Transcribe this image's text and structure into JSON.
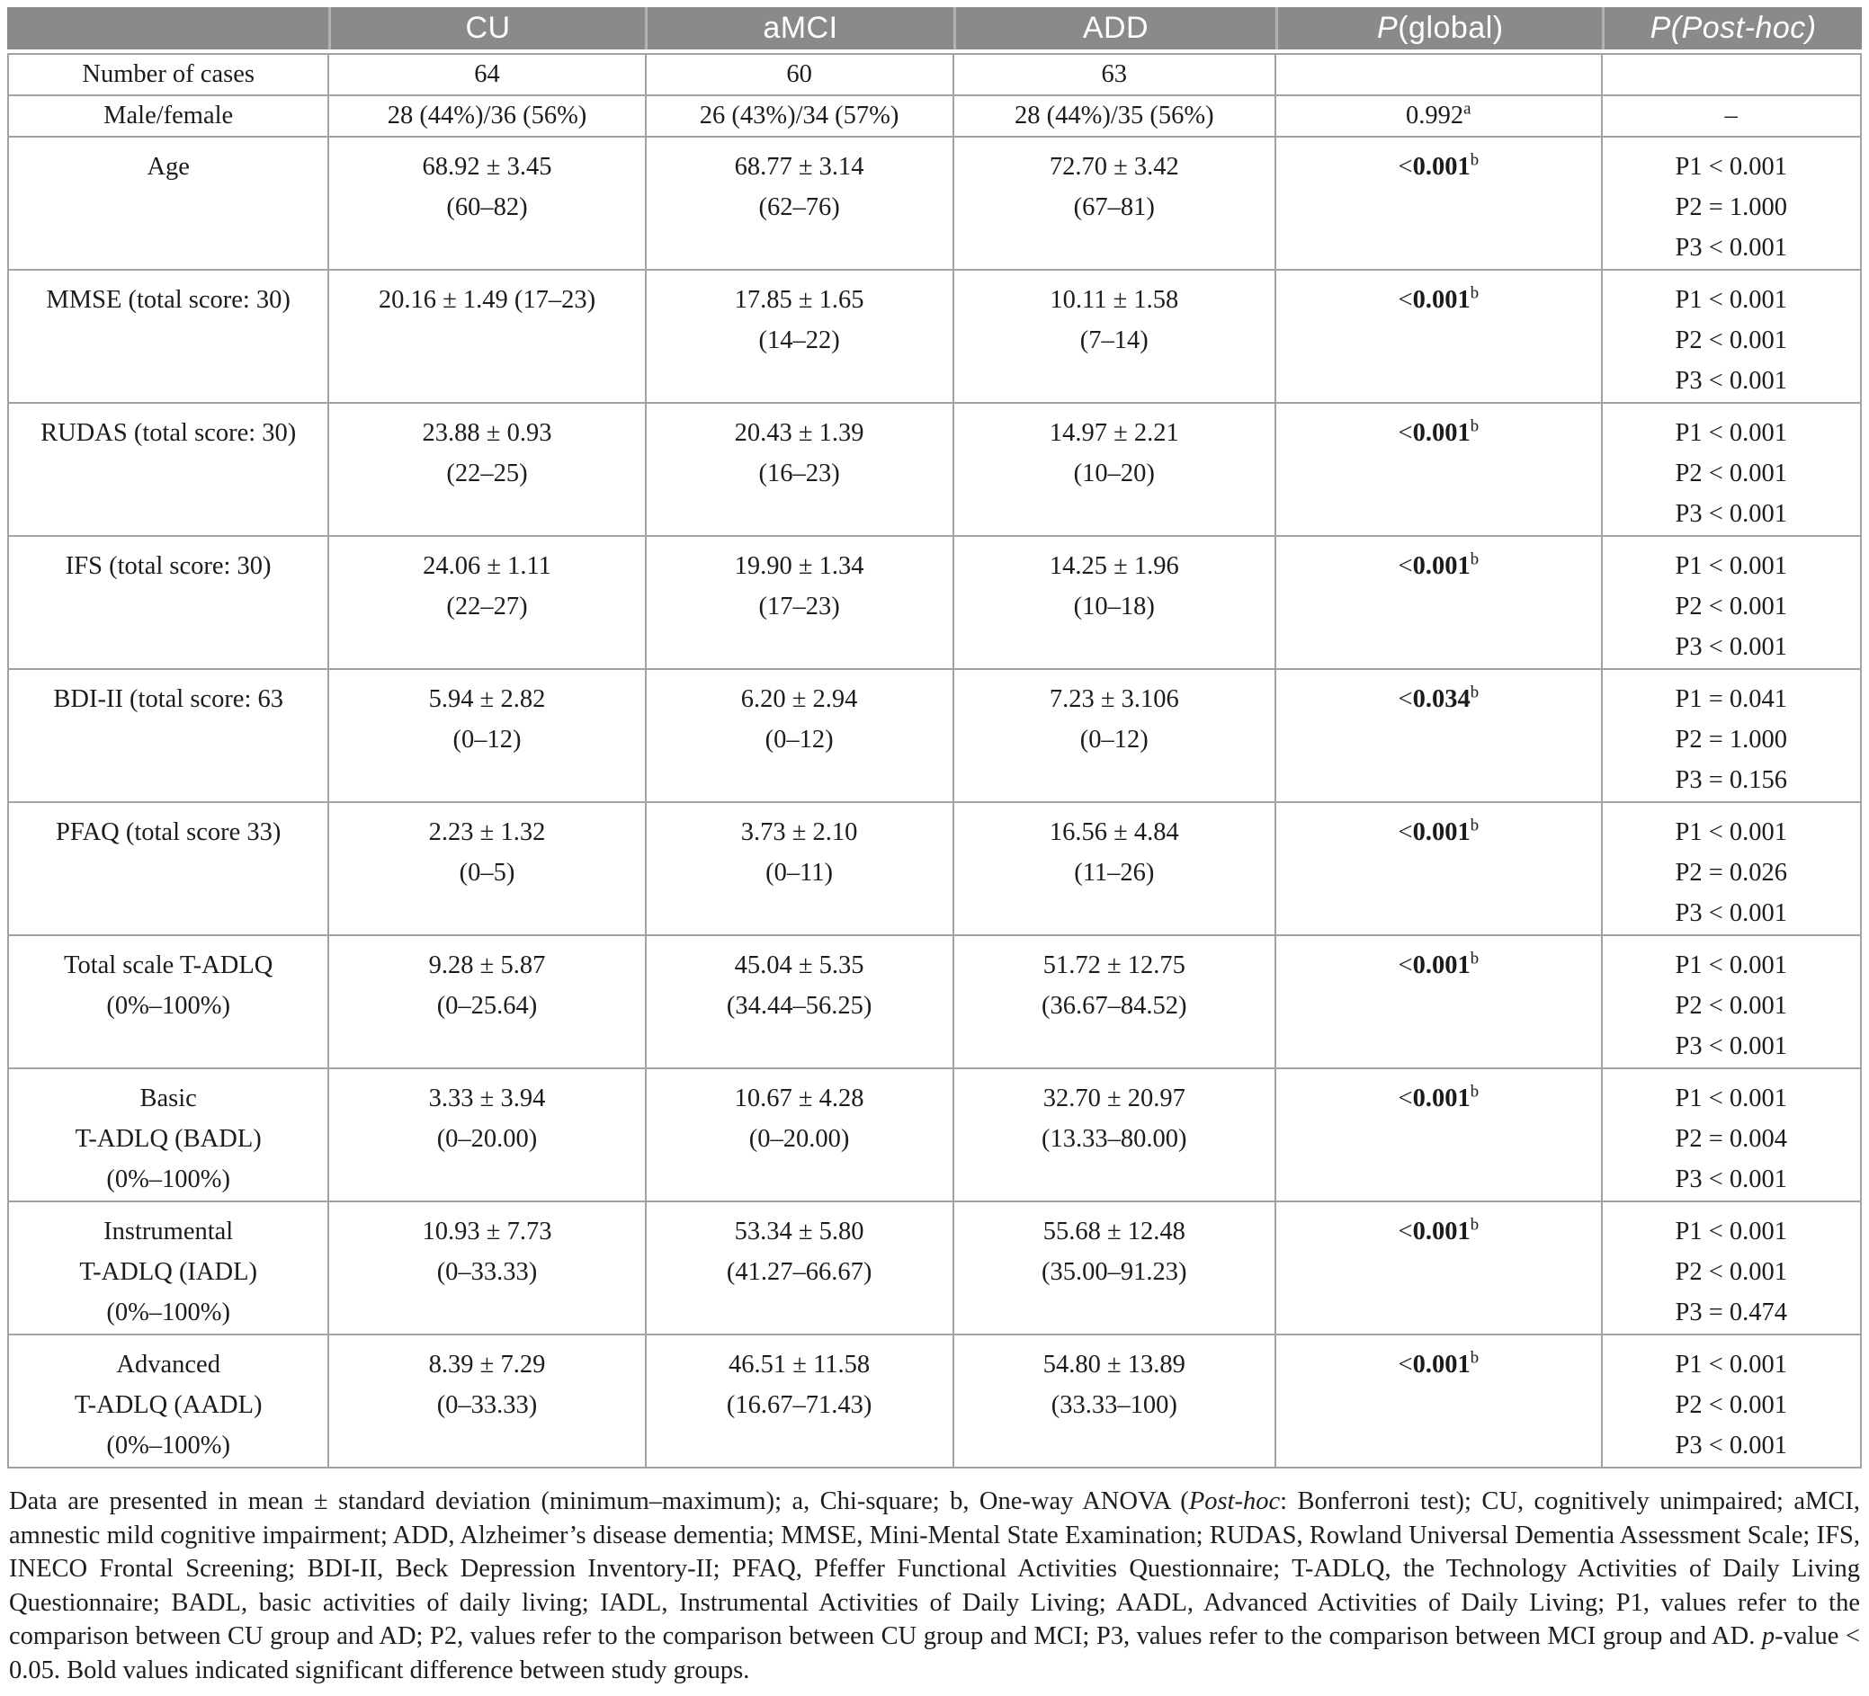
{
  "colors": {
    "header_bg": "#8a8a8a",
    "header_text": "#ffffff",
    "header_divider": "#b2b2b2",
    "border": "#a3a3a3"
  },
  "table": {
    "header": {
      "blank": "",
      "cu": "CU",
      "amci": "aMCI",
      "add": "ADD",
      "p_global": {
        "p": "P",
        "rest": " (global)"
      },
      "p_posthoc": {
        "p": "P",
        "rest": " (Post-hoc)"
      }
    },
    "rows": [
      {
        "compact": true,
        "label": [
          "Number of cases"
        ],
        "cu": [
          "64"
        ],
        "amci": [
          "60"
        ],
        "add": [
          "63"
        ],
        "p_global": null,
        "posthoc": []
      },
      {
        "compact": true,
        "label": [
          "Male/female"
        ],
        "cu": [
          "28 (44%)/36 (56%)"
        ],
        "amci": [
          "26 (43%)/34 (57%)"
        ],
        "add": [
          "28 (44%)/35 (56%)"
        ],
        "p_global": {
          "pre": "",
          "value": "0.992",
          "sup": "a",
          "bold": false
        },
        "posthoc": [
          "–"
        ]
      },
      {
        "label": [
          "Age"
        ],
        "cu": [
          "68.92 ± 3.45",
          "(60–82)"
        ],
        "amci": [
          "68.77 ± 3.14",
          "(62–76)"
        ],
        "add": [
          "72.70 ± 3.42",
          "(67–81)"
        ],
        "p_global": {
          "pre": "<",
          "value": "0.001",
          "sup": "b",
          "bold": true
        },
        "posthoc": [
          "P1 < 0.001",
          "P2 = 1.000",
          "P3 < 0.001"
        ]
      },
      {
        "label": [
          "MMSE (total score: 30)"
        ],
        "cu": [
          "20.16 ± 1.49 (17–23)"
        ],
        "amci": [
          "17.85 ± 1.65",
          "(14–22)"
        ],
        "add": [
          "10.11 ± 1.58",
          "(7–14)"
        ],
        "p_global": {
          "pre": "<",
          "value": "0.001",
          "sup": "b",
          "bold": true
        },
        "posthoc": [
          "P1 < 0.001",
          "P2 < 0.001",
          "P3 < 0.001"
        ]
      },
      {
        "label": [
          "RUDAS (total score: 30)"
        ],
        "cu": [
          "23.88 ± 0.93",
          "(22–25)"
        ],
        "amci": [
          "20.43 ± 1.39",
          "(16–23)"
        ],
        "add": [
          "14.97 ± 2.21",
          "(10–20)"
        ],
        "p_global": {
          "pre": "<",
          "value": "0.001",
          "sup": "b",
          "bold": true
        },
        "posthoc": [
          "P1 < 0.001",
          "P2 < 0.001",
          "P3 < 0.001"
        ]
      },
      {
        "label": [
          "IFS (total score: 30)"
        ],
        "cu": [
          "24.06 ± 1.11",
          "(22–27)"
        ],
        "amci": [
          "19.90 ± 1.34",
          "(17–23)"
        ],
        "add": [
          "14.25 ± 1.96",
          "(10–18)"
        ],
        "p_global": {
          "pre": "<",
          "value": "0.001",
          "sup": "b",
          "bold": true
        },
        "posthoc": [
          "P1 < 0.001",
          "P2 < 0.001",
          "P3 < 0.001"
        ]
      },
      {
        "label": [
          "BDI-II (total score: 63"
        ],
        "cu": [
          "5.94 ± 2.82",
          "(0–12)"
        ],
        "amci": [
          "6.20 ± 2.94",
          "(0–12)"
        ],
        "add": [
          "7.23 ± 3.106",
          "(0–12)"
        ],
        "p_global": {
          "pre": "<",
          "value": "0.034",
          "sup": "b",
          "bold": true
        },
        "posthoc": [
          "P1 = 0.041",
          "P2 = 1.000",
          "P3 = 0.156"
        ]
      },
      {
        "label": [
          "PFAQ (total score 33)"
        ],
        "cu": [
          "2.23 ± 1.32",
          "(0–5)"
        ],
        "amci": [
          "3.73 ± 2.10",
          "(0–11)"
        ],
        "add": [
          "16.56 ± 4.84",
          "(11–26)"
        ],
        "p_global": {
          "pre": "<",
          "value": "0.001",
          "sup": "b",
          "bold": true
        },
        "posthoc": [
          "P1 < 0.001",
          "P2 = 0.026",
          "P3 < 0.001"
        ]
      },
      {
        "label": [
          "Total scale T-ADLQ",
          "(0%–100%)"
        ],
        "cu": [
          "9.28 ± 5.87",
          "(0–25.64)"
        ],
        "amci": [
          "45.04 ± 5.35",
          "(34.44–56.25)"
        ],
        "add": [
          "51.72 ± 12.75",
          "(36.67–84.52)"
        ],
        "p_global": {
          "pre": "<",
          "value": "0.001",
          "sup": "b",
          "bold": true
        },
        "posthoc": [
          "P1 < 0.001",
          "P2 < 0.001",
          "P3 < 0.001"
        ]
      },
      {
        "label": [
          "Basic",
          "T-ADLQ (BADL)",
          "(0%–100%)"
        ],
        "cu": [
          "3.33 ± 3.94",
          "(0–20.00)"
        ],
        "amci": [
          "10.67 ± 4.28",
          "(0–20.00)"
        ],
        "add": [
          "32.70 ± 20.97",
          "(13.33–80.00)"
        ],
        "p_global": {
          "pre": "<",
          "value": "0.001",
          "sup": "b",
          "bold": true
        },
        "posthoc": [
          "P1 < 0.001",
          "P2 = 0.004",
          "P3 < 0.001"
        ]
      },
      {
        "label": [
          "Instrumental",
          "T-ADLQ (IADL)",
          "(0%–100%)"
        ],
        "cu": [
          "10.93 ± 7.73",
          "(0–33.33)"
        ],
        "amci": [
          "53.34 ± 5.80",
          "(41.27–66.67)"
        ],
        "add": [
          "55.68 ± 12.48",
          "(35.00–91.23)"
        ],
        "p_global": {
          "pre": "<",
          "value": "0.001",
          "sup": "b",
          "bold": true
        },
        "posthoc": [
          "P1 < 0.001",
          "P2 < 0.001",
          "P3 = 0.474"
        ]
      },
      {
        "label": [
          "Advanced",
          "T-ADLQ (AADL)",
          "(0%–100%)"
        ],
        "cu": [
          "8.39 ± 7.29",
          "(0–33.33)"
        ],
        "amci": [
          "46.51 ± 11.58",
          "(16.67–71.43)"
        ],
        "add": [
          "54.80 ± 13.89",
          "(33.33–100)"
        ],
        "p_global": {
          "pre": "<",
          "value": "0.001",
          "sup": "b",
          "bold": true
        },
        "posthoc": [
          "P1 < 0.001",
          "P2 < 0.001",
          "P3 < 0.001"
        ]
      }
    ]
  },
  "footnote": {
    "segments": [
      {
        "text": "Data are presented in mean ± standard deviation (minimum–maximum); a, Chi-square; b, One-way ANOVA ("
      },
      {
        "text": "Post-hoc",
        "italic": true
      },
      {
        "text": ": Bonferroni test); CU, cognitively unimpaired; aMCI, amnestic mild cognitive impairment; ADD, Alzheimer’s disease dementia; MMSE, Mini-Mental State Examination; RUDAS, Rowland Universal Dementia Assessment Scale; IFS, INECO Frontal Screening; BDI-II, Beck Depression Inventory-II; PFAQ, Pfeffer Functional Activities Questionnaire; T-ADLQ, the Technology Activities of Daily Living Questionnaire; BADL, basic activities of daily living; IADL, Instrumental Activities of Daily Living; AADL, Advanced Activities of Daily Living; P1, values refer to the comparison between CU group and AD; P2, values refer to the comparison between CU group and MCI; P3, values refer to the comparison between MCI group and AD. "
      },
      {
        "text": "p",
        "italic": true
      },
      {
        "text": "-value < 0.05. Bold values indicated significant difference between study groups."
      }
    ]
  }
}
